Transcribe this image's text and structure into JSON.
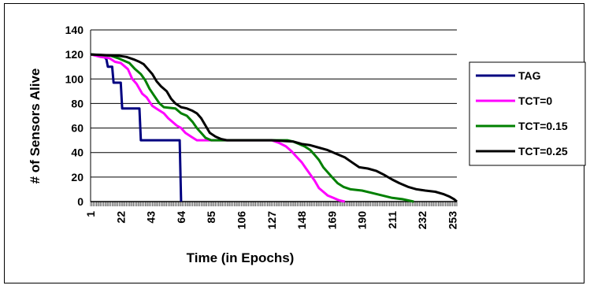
{
  "chart_data": {
    "type": "line",
    "title": "",
    "xlabel": "Time (in Epochs)",
    "ylabel": "# of Sensors Alive",
    "ylim": [
      0,
      140
    ],
    "yticks": [
      0,
      20,
      40,
      60,
      80,
      100,
      120,
      140
    ],
    "xlim": [
      1,
      256
    ],
    "xticks": [
      1,
      22,
      43,
      64,
      85,
      106,
      127,
      148,
      169,
      190,
      211,
      232,
      253
    ],
    "grid": "horizontal",
    "legend_position": "right",
    "series": [
      {
        "name": "TAG",
        "color": "#000080",
        "points": [
          [
            1,
            120
          ],
          [
            10,
            119
          ],
          [
            12,
            116
          ],
          [
            13,
            110
          ],
          [
            16,
            110
          ],
          [
            17,
            97
          ],
          [
            22,
            97
          ],
          [
            23,
            76
          ],
          [
            35,
            76
          ],
          [
            36,
            50
          ],
          [
            63,
            50
          ],
          [
            64,
            0
          ]
        ]
      },
      {
        "name": "TCT=0",
        "color": "#ff00ff",
        "points": [
          [
            1,
            120
          ],
          [
            8,
            118
          ],
          [
            14,
            117
          ],
          [
            18,
            114
          ],
          [
            22,
            113
          ],
          [
            27,
            108
          ],
          [
            30,
            100
          ],
          [
            33,
            96
          ],
          [
            37,
            88
          ],
          [
            40,
            85
          ],
          [
            44,
            78
          ],
          [
            48,
            75
          ],
          [
            52,
            72
          ],
          [
            55,
            68
          ],
          [
            58,
            65
          ],
          [
            61,
            62
          ],
          [
            64,
            60
          ],
          [
            67,
            56
          ],
          [
            71,
            53
          ],
          [
            75,
            50
          ],
          [
            85,
            50
          ],
          [
            127,
            50
          ],
          [
            132,
            48
          ],
          [
            137,
            45
          ],
          [
            141,
            41
          ],
          [
            144,
            37
          ],
          [
            148,
            32
          ],
          [
            151,
            27
          ],
          [
            154,
            22
          ],
          [
            157,
            17
          ],
          [
            160,
            11
          ],
          [
            163,
            8
          ],
          [
            166,
            5
          ],
          [
            170,
            3
          ],
          [
            174,
            1
          ],
          [
            178,
            0
          ]
        ]
      },
      {
        "name": "TCT=0.15",
        "color": "#008000",
        "points": [
          [
            1,
            120
          ],
          [
            15,
            119
          ],
          [
            20,
            117
          ],
          [
            24,
            115
          ],
          [
            28,
            113
          ],
          [
            32,
            108
          ],
          [
            36,
            104
          ],
          [
            39,
            99
          ],
          [
            42,
            92
          ],
          [
            46,
            85
          ],
          [
            49,
            80
          ],
          [
            52,
            77
          ],
          [
            60,
            76
          ],
          [
            64,
            72
          ],
          [
            68,
            70
          ],
          [
            72,
            65
          ],
          [
            75,
            60
          ],
          [
            78,
            56
          ],
          [
            81,
            52
          ],
          [
            85,
            50
          ],
          [
            127,
            50
          ],
          [
            138,
            50
          ],
          [
            142,
            49
          ],
          [
            146,
            47
          ],
          [
            150,
            45
          ],
          [
            154,
            42
          ],
          [
            157,
            38
          ],
          [
            160,
            34
          ],
          [
            163,
            28
          ],
          [
            166,
            24
          ],
          [
            169,
            20
          ],
          [
            173,
            15
          ],
          [
            177,
            12
          ],
          [
            182,
            10
          ],
          [
            190,
            9
          ],
          [
            197,
            7
          ],
          [
            204,
            5
          ],
          [
            211,
            3
          ],
          [
            218,
            2
          ],
          [
            226,
            0
          ]
        ]
      },
      {
        "name": "TCT=0.25",
        "color": "#000000",
        "points": [
          [
            1,
            120
          ],
          [
            20,
            119
          ],
          [
            26,
            118
          ],
          [
            31,
            116
          ],
          [
            35,
            114
          ],
          [
            38,
            112
          ],
          [
            41,
            108
          ],
          [
            44,
            104
          ],
          [
            47,
            98
          ],
          [
            50,
            94
          ],
          [
            54,
            90
          ],
          [
            57,
            84
          ],
          [
            60,
            80
          ],
          [
            64,
            77
          ],
          [
            68,
            76
          ],
          [
            72,
            74
          ],
          [
            75,
            72
          ],
          [
            78,
            68
          ],
          [
            81,
            62
          ],
          [
            84,
            56
          ],
          [
            88,
            53
          ],
          [
            92,
            51
          ],
          [
            96,
            50
          ],
          [
            127,
            50
          ],
          [
            142,
            49
          ],
          [
            148,
            47
          ],
          [
            154,
            46
          ],
          [
            160,
            44
          ],
          [
            166,
            42
          ],
          [
            172,
            39
          ],
          [
            178,
            36
          ],
          [
            183,
            32
          ],
          [
            188,
            28
          ],
          [
            194,
            27
          ],
          [
            200,
            25
          ],
          [
            205,
            22
          ],
          [
            211,
            18
          ],
          [
            216,
            15
          ],
          [
            222,
            12
          ],
          [
            228,
            10
          ],
          [
            234,
            9
          ],
          [
            241,
            8
          ],
          [
            247,
            6
          ],
          [
            251,
            4
          ],
          [
            254,
            2
          ],
          [
            256,
            0
          ]
        ]
      }
    ]
  }
}
